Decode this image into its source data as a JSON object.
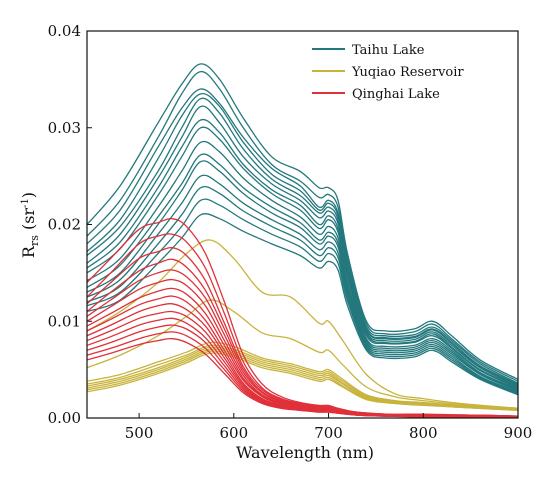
{
  "chart_data": {
    "type": "line",
    "title": "",
    "xlabel": "Wavelength (nm)",
    "ylabel": "R",
    "ylabel_sub": "rs",
    "ylabel_unit_open": " (sr",
    "ylabel_unit_sup": "-1",
    "ylabel_unit_close": ")",
    "xlim": [
      445,
      900
    ],
    "ylim": [
      0,
      0.04
    ],
    "x_ticks": [
      500,
      600,
      700,
      800,
      900
    ],
    "y_ticks": [
      0.0,
      0.01,
      0.02,
      0.03,
      0.04
    ],
    "x_tick_labels": [
      "500",
      "600",
      "700",
      "800",
      "900"
    ],
    "y_tick_labels": [
      "0.00",
      "0.01",
      "0.02",
      "0.03",
      "0.04"
    ],
    "grid": false,
    "legend_position": "top-right",
    "groups": [
      {
        "name": "Taihu Lake",
        "color": "#23787d",
        "x": [
          445,
          480,
          520,
          545,
          565,
          585,
          610,
          640,
          670,
          690,
          700,
          710,
          720,
          740,
          760,
          790,
          810,
          830,
          860,
          900
        ],
        "series": [
          {
            "values": [
              0.02,
              0.024,
              0.0305,
              0.0345,
              0.0366,
              0.035,
              0.031,
              0.027,
              0.0255,
              0.0238,
              0.0238,
              0.0225,
              0.017,
              0.01,
              0.009,
              0.0092,
              0.01,
              0.0085,
              0.006,
              0.004
            ]
          },
          {
            "values": [
              0.0188,
              0.0225,
              0.029,
              0.0335,
              0.0358,
              0.034,
              0.03,
              0.0262,
              0.0245,
              0.0228,
              0.0231,
              0.0218,
              0.0165,
              0.0097,
              0.0087,
              0.0089,
              0.0097,
              0.0082,
              0.0058,
              0.0038
            ]
          },
          {
            "values": [
              0.018,
              0.0215,
              0.028,
              0.032,
              0.034,
              0.0325,
              0.029,
              0.0258,
              0.024,
              0.0218,
              0.0225,
              0.0212,
              0.016,
              0.0094,
              0.0085,
              0.0086,
              0.0094,
              0.008,
              0.0056,
              0.0036
            ]
          },
          {
            "values": [
              0.0172,
              0.0205,
              0.0268,
              0.0312,
              0.0335,
              0.0322,
              0.0285,
              0.0252,
              0.0235,
              0.0215,
              0.0222,
              0.0209,
              0.0158,
              0.0092,
              0.0083,
              0.0084,
              0.0092,
              0.0078,
              0.0054,
              0.0035
            ]
          },
          {
            "values": [
              0.0168,
              0.0198,
              0.0255,
              0.03,
              0.033,
              0.0315,
              0.0278,
              0.0247,
              0.023,
              0.0212,
              0.0218,
              0.0205,
              0.0155,
              0.0091,
              0.0082,
              0.0083,
              0.0091,
              0.0077,
              0.0053,
              0.0034
            ]
          },
          {
            "values": [
              0.016,
              0.019,
              0.0248,
              0.029,
              0.0322,
              0.0305,
              0.027,
              0.0242,
              0.0225,
              0.0207,
              0.0214,
              0.0201,
              0.0152,
              0.0089,
              0.008,
              0.0081,
              0.0089,
              0.0075,
              0.0052,
              0.0033
            ]
          },
          {
            "values": [
              0.0155,
              0.0182,
              0.0238,
              0.028,
              0.0308,
              0.0295,
              0.0262,
              0.0236,
              0.022,
              0.02,
              0.0209,
              0.0196,
              0.0148,
              0.0087,
              0.0078,
              0.0079,
              0.0087,
              0.0073,
              0.005,
              0.0032
            ]
          },
          {
            "values": [
              0.015,
              0.0175,
              0.023,
              0.027,
              0.03,
              0.0288,
              0.0258,
              0.0232,
              0.0215,
              0.0196,
              0.0205,
              0.0192,
              0.0145,
              0.0085,
              0.0077,
              0.0078,
              0.0085,
              0.0072,
              0.0049,
              0.0031
            ]
          },
          {
            "values": [
              0.0142,
              0.0165,
              0.0218,
              0.0255,
              0.0285,
              0.0275,
              0.0248,
              0.0225,
              0.0208,
              0.019,
              0.0198,
              0.0186,
              0.014,
              0.0082,
              0.0074,
              0.0075,
              0.0082,
              0.007,
              0.0047,
              0.003
            ]
          },
          {
            "values": [
              0.0135,
              0.0158,
              0.0208,
              0.0242,
              0.0272,
              0.0262,
              0.0238,
              0.0218,
              0.0202,
              0.0184,
              0.0192,
              0.0181,
              0.0136,
              0.008,
              0.0072,
              0.0073,
              0.008,
              0.0068,
              0.0046,
              0.0029
            ]
          },
          {
            "values": [
              0.013,
              0.015,
              0.02,
              0.0235,
              0.0265,
              0.0255,
              0.0232,
              0.0212,
              0.0197,
              0.018,
              0.0188,
              0.0177,
              0.0133,
              0.0078,
              0.007,
              0.0071,
              0.0078,
              0.0066,
              0.0045,
              0.0028
            ]
          },
          {
            "values": [
              0.0125,
              0.0143,
              0.019,
              0.0222,
              0.025,
              0.0242,
              0.0222,
              0.0205,
              0.019,
              0.0174,
              0.0182,
              0.0171,
              0.0129,
              0.0076,
              0.0068,
              0.0069,
              0.0076,
              0.0064,
              0.0043,
              0.0027
            ]
          },
          {
            "values": [
              0.012,
              0.0136,
              0.018,
              0.021,
              0.0238,
              0.0232,
              0.0214,
              0.0198,
              0.0184,
              0.0168,
              0.0176,
              0.0166,
              0.0125,
              0.0074,
              0.0066,
              0.0067,
              0.0074,
              0.0062,
              0.0042,
              0.0026
            ]
          },
          {
            "values": [
              0.0116,
              0.013,
              0.017,
              0.0198,
              0.0225,
              0.022,
              0.0205,
              0.019,
              0.0177,
              0.0162,
              0.017,
              0.016,
              0.0121,
              0.0072,
              0.0064,
              0.0065,
              0.0072,
              0.006,
              0.0041,
              0.0025
            ]
          },
          {
            "values": [
              0.011,
              0.0122,
              0.016,
              0.0186,
              0.021,
              0.0206,
              0.0193,
              0.018,
              0.0168,
              0.0155,
              0.0162,
              0.0153,
              0.0116,
              0.007,
              0.0062,
              0.0063,
              0.007,
              0.0058,
              0.004,
              0.0024
            ]
          }
        ]
      },
      {
        "name": "Yuqiao Reservoir",
        "color": "#c8b43c",
        "x": [
          445,
          480,
          520,
          550,
          575,
          600,
          630,
          660,
          690,
          700,
          715,
          740,
          770,
          800,
          840,
          900
        ],
        "series": [
          {
            "values": [
              0.009,
              0.011,
              0.014,
              0.017,
              0.0184,
              0.0165,
              0.013,
              0.0125,
              0.0098,
              0.01,
              0.008,
              0.0045,
              0.0025,
              0.002,
              0.0015,
              0.001
            ]
          },
          {
            "values": [
              0.0052,
              0.0065,
              0.0085,
              0.0105,
              0.0122,
              0.011,
              0.0088,
              0.0082,
              0.0068,
              0.007,
              0.0055,
              0.0032,
              0.0022,
              0.0018,
              0.0014,
              0.001
            ]
          },
          {
            "values": [
              0.0038,
              0.0045,
              0.0058,
              0.0068,
              0.0078,
              0.0074,
              0.0062,
              0.0056,
              0.0048,
              0.005,
              0.004,
              0.0024,
              0.0018,
              0.0016,
              0.0013,
              0.001
            ]
          },
          {
            "values": [
              0.0035,
              0.0042,
              0.0055,
              0.0065,
              0.0075,
              0.0071,
              0.006,
              0.0054,
              0.0046,
              0.0048,
              0.0038,
              0.0023,
              0.0017,
              0.0015,
              0.0012,
              0.0009
            ]
          },
          {
            "values": [
              0.0033,
              0.004,
              0.0052,
              0.0063,
              0.0073,
              0.0069,
              0.0058,
              0.0052,
              0.0044,
              0.0046,
              0.0036,
              0.0022,
              0.0016,
              0.0015,
              0.0012,
              0.0009
            ]
          },
          {
            "values": [
              0.0031,
              0.0038,
              0.005,
              0.0061,
              0.0071,
              0.0067,
              0.0056,
              0.005,
              0.0042,
              0.0044,
              0.0035,
              0.0021,
              0.0016,
              0.0014,
              0.0011,
              0.0009
            ]
          },
          {
            "values": [
              0.0029,
              0.0036,
              0.0048,
              0.0059,
              0.0069,
              0.0065,
              0.0054,
              0.0048,
              0.004,
              0.0042,
              0.0033,
              0.002,
              0.0015,
              0.0014,
              0.0011,
              0.0008
            ]
          },
          {
            "values": [
              0.0027,
              0.0034,
              0.0046,
              0.0057,
              0.0067,
              0.0063,
              0.0052,
              0.0046,
              0.0038,
              0.004,
              0.0032,
              0.0019,
              0.0015,
              0.0013,
              0.0011,
              0.0008
            ]
          }
        ]
      },
      {
        "name": "Qinghai Lake",
        "color": "#e0303a",
        "x": [
          445,
          470,
          500,
          520,
          535,
          550,
          570,
          590,
          610,
          630,
          650,
          670,
          690,
          700,
          710,
          730,
          760,
          800,
          850,
          900
        ],
        "series": [
          {
            "values": [
              0.014,
              0.0165,
              0.0195,
              0.0202,
              0.0206,
              0.0198,
              0.017,
              0.012,
              0.0065,
              0.0035,
              0.0022,
              0.0016,
              0.0013,
              0.0013,
              0.001,
              0.0006,
              0.0004,
              0.0004,
              0.0003,
              0.0002
            ]
          },
          {
            "values": [
              0.0125,
              0.015,
              0.018,
              0.0188,
              0.019,
              0.0182,
              0.0155,
              0.0108,
              0.0058,
              0.0031,
              0.002,
              0.0015,
              0.0012,
              0.0012,
              0.0009,
              0.0006,
              0.0004,
              0.0003,
              0.0003,
              0.0002
            ]
          },
          {
            "values": [
              0.0118,
              0.014,
              0.0165,
              0.0172,
              0.0176,
              0.0168,
              0.0142,
              0.0098,
              0.0053,
              0.0029,
              0.0019,
              0.0014,
              0.0011,
              0.0011,
              0.0009,
              0.0005,
              0.0004,
              0.0003,
              0.0003,
              0.0002
            ]
          },
          {
            "values": [
              0.011,
              0.013,
              0.0152,
              0.016,
              0.0164,
              0.0156,
              0.0132,
              0.0092,
              0.005,
              0.0027,
              0.0018,
              0.0013,
              0.0011,
              0.0011,
              0.0008,
              0.0005,
              0.0003,
              0.0003,
              0.0002,
              0.0002
            ]
          },
          {
            "values": [
              0.0105,
              0.0122,
              0.0142,
              0.015,
              0.0153,
              0.0146,
              0.0124,
              0.0086,
              0.0047,
              0.0026,
              0.0017,
              0.0013,
              0.001,
              0.001,
              0.0008,
              0.0005,
              0.0003,
              0.0003,
              0.0002,
              0.0002
            ]
          },
          {
            "values": [
              0.01,
              0.0115,
              0.0133,
              0.014,
              0.0143,
              0.0137,
              0.0116,
              0.008,
              0.0044,
              0.0024,
              0.0016,
              0.0012,
              0.001,
              0.001,
              0.0007,
              0.0005,
              0.0003,
              0.0003,
              0.0002,
              0.0001
            ]
          },
          {
            "values": [
              0.0095,
              0.0108,
              0.0124,
              0.0131,
              0.0134,
              0.0128,
              0.0108,
              0.0075,
              0.0041,
              0.0023,
              0.0015,
              0.0011,
              0.0009,
              0.0009,
              0.0007,
              0.0004,
              0.0003,
              0.0002,
              0.0002,
              0.0001
            ]
          },
          {
            "values": [
              0.009,
              0.0102,
              0.0117,
              0.0123,
              0.0126,
              0.012,
              0.0101,
              0.007,
              0.0039,
              0.0022,
              0.0014,
              0.0011,
              0.0009,
              0.0009,
              0.0007,
              0.0004,
              0.0003,
              0.0002,
              0.0002,
              0.0001
            ]
          },
          {
            "values": [
              0.0085,
              0.0096,
              0.011,
              0.0116,
              0.0118,
              0.0112,
              0.0095,
              0.0066,
              0.0036,
              0.002,
              0.0013,
              0.001,
              0.0008,
              0.0008,
              0.0006,
              0.0004,
              0.0003,
              0.0002,
              0.0002,
              0.0001
            ]
          },
          {
            "values": [
              0.008,
              0.009,
              0.0103,
              0.0108,
              0.011,
              0.0105,
              0.0089,
              0.0062,
              0.0034,
              0.0019,
              0.0013,
              0.001,
              0.0008,
              0.0008,
              0.0006,
              0.0004,
              0.0002,
              0.0002,
              0.0002,
              0.0001
            ]
          },
          {
            "values": [
              0.0075,
              0.0084,
              0.0096,
              0.0101,
              0.0103,
              0.0098,
              0.0083,
              0.0058,
              0.0032,
              0.0018,
              0.0012,
              0.0009,
              0.0007,
              0.0007,
              0.0006,
              0.0003,
              0.0002,
              0.0002,
              0.0001,
              0.0001
            ]
          },
          {
            "values": [
              0.007,
              0.0078,
              0.0089,
              0.0094,
              0.0096,
              0.0092,
              0.0078,
              0.0054,
              0.003,
              0.0017,
              0.0011,
              0.0009,
              0.0007,
              0.0007,
              0.0005,
              0.0003,
              0.0002,
              0.0002,
              0.0001,
              0.0001
            ]
          },
          {
            "values": [
              0.0065,
              0.0072,
              0.0082,
              0.0087,
              0.0089,
              0.0085,
              0.0072,
              0.005,
              0.0028,
              0.0016,
              0.0011,
              0.0008,
              0.0007,
              0.0007,
              0.0005,
              0.0003,
              0.0002,
              0.0002,
              0.0001,
              0.0001
            ]
          },
          {
            "values": [
              0.006,
              0.0067,
              0.0076,
              0.008,
              0.0082,
              0.0078,
              0.0066,
              0.0046,
              0.0026,
              0.0015,
              0.001,
              0.0008,
              0.0006,
              0.0006,
              0.0005,
              0.0003,
              0.0002,
              0.0001,
              0.0001,
              0.0001
            ]
          }
        ]
      }
    ]
  }
}
